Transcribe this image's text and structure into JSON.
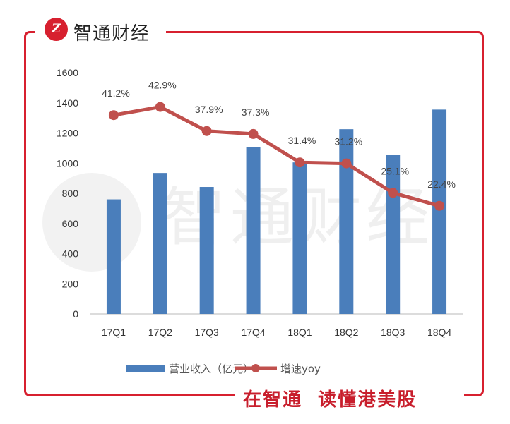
{
  "header": {
    "brand": "智通财经",
    "logo_text": "Z"
  },
  "footer": {
    "slogan": "在智通  读懂港美股"
  },
  "watermark": "智通财经",
  "colors": {
    "bar": "#4a7ebb",
    "line": "#c0504d",
    "frame": "#d7202f"
  },
  "chart_data": {
    "type": "bar+line",
    "categories": [
      "17Q1",
      "17Q2",
      "17Q3",
      "17Q4",
      "18Q1",
      "18Q2",
      "18Q3",
      "18Q4"
    ],
    "series": [
      {
        "name": "营业收入（亿元）",
        "type": "bar",
        "axis": "left",
        "values": [
          760,
          935,
          842,
          1105,
          1005,
          1225,
          1055,
          1355
        ]
      },
      {
        "name": "增速yoy",
        "type": "line",
        "axis": "right-hidden",
        "values": [
          41.2,
          42.9,
          37.9,
          37.3,
          31.4,
          31.2,
          25.1,
          22.4
        ],
        "labels": [
          "41.2%",
          "42.9%",
          "37.9%",
          "37.3%",
          "31.4%",
          "31.2%",
          "25.1%",
          "22.4%"
        ]
      }
    ],
    "ylim": [
      0,
      1600
    ],
    "yticks": [
      "0",
      "200",
      "400",
      "600",
      "800",
      "1000",
      "1200",
      "1400",
      "1600"
    ],
    "y2lim": [
      0,
      50
    ],
    "grid": false,
    "legend": "bottom"
  }
}
